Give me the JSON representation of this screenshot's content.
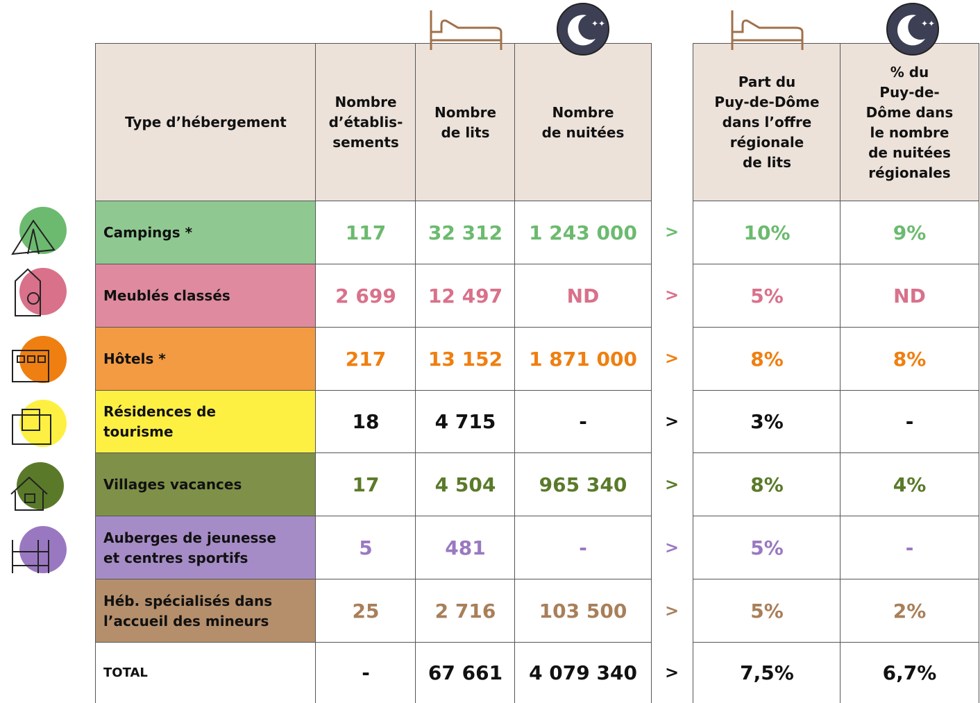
{
  "table": {
    "header": [
      [
        "Type d’hébergement"
      ],
      [
        "Nombre",
        "d’établis-",
        "sements"
      ],
      [
        "Nombre",
        "de lits"
      ],
      [
        "Nombre",
        "de nuitées"
      ],
      [
        "Part du",
        "Puy-de-Dôme",
        "dans l’offre",
        "régionale",
        "de lits"
      ],
      [
        "% du",
        "Puy-de-",
        "Dôme dans",
        "le nombre",
        "de nuitées",
        "régionales"
      ]
    ],
    "rows": [
      {
        "label": [
          "Campings *"
        ],
        "cells": [
          "117",
          "32 312",
          "1 243 000"
        ],
        "arrow": ">",
        "shares": [
          "10%",
          "9%"
        ],
        "color": "#8fc991",
        "text_color": "#6cba6f"
      },
      {
        "label": [
          "Meublés classés"
        ],
        "cells": [
          "2 699",
          "12 497",
          "ND"
        ],
        "arrow": ">",
        "shares": [
          "5%",
          "ND"
        ],
        "color": "#df8a9f",
        "text_color": "#d9718b"
      },
      {
        "label": [
          "Hôtels *"
        ],
        "cells": [
          "217",
          "13 152",
          "1 871 000"
        ],
        "arrow": ">",
        "shares": [
          "8%",
          "8%"
        ],
        "color": "#f39b42",
        "text_color": "#ef7f10"
      },
      {
        "label": [
          "Résidences de",
          "tourisme"
        ],
        "cells": [
          "18",
          "4 715",
          "-"
        ],
        "arrow": ">",
        "shares": [
          "3%",
          "-"
        ],
        "color": "#fef043",
        "text_color": "#111111"
      },
      {
        "label": [
          "Villages vacances"
        ],
        "cells": [
          "17",
          "4 504",
          "965 340"
        ],
        "arrow": ">",
        "shares": [
          "8%",
          "4%"
        ],
        "color": "#7f9148",
        "text_color": "#5a7a2a"
      },
      {
        "label": [
          "Auberges de jeunesse",
          "et centres sportifs"
        ],
        "cells": [
          "5",
          "481",
          "-"
        ],
        "arrow": ">",
        "shares": [
          "5%",
          "-"
        ],
        "color": "#a68cc7",
        "text_color": "#9a78c1"
      },
      {
        "label": [
          "Héb. spécialisés dans",
          "l’accueil des mineurs"
        ],
        "cells": [
          "25",
          "2 716",
          "103 500"
        ],
        "arrow": ">",
        "shares": [
          "5%",
          "2%"
        ],
        "color": "#b58f6c",
        "text_color": "#a87f5a"
      },
      {
        "label": [
          "TOTAL"
        ],
        "cells": [
          "-",
          "67 661",
          "4 079 340"
        ],
        "arrow": ">",
        "shares": [
          "7,5%",
          "6,7%"
        ],
        "color": "#ffffff",
        "text_color": "#111111"
      }
    ]
  }
}
